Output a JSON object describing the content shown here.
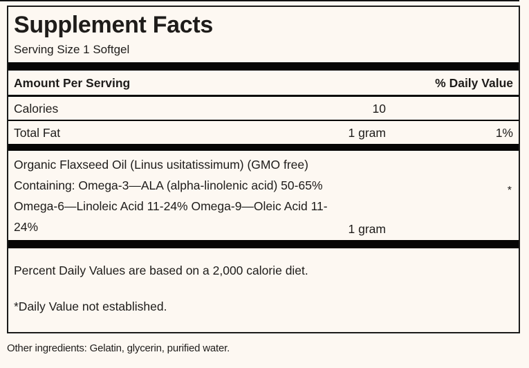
{
  "label": {
    "title": "Supplement Facts",
    "serving_size": "Serving Size 1 Softgel",
    "columns": {
      "amount_header": "Amount Per Serving",
      "dv_header": "% Daily Value"
    },
    "rows": [
      {
        "name": "Calories",
        "amount": "10",
        "dv": ""
      },
      {
        "name": "Total Fat",
        "amount": "1 gram",
        "dv": "1%"
      }
    ],
    "ingredient": {
      "lines": [
        "Organic Flaxseed Oil (Linus usitatissimum) (GMO free)",
        "Containing: Omega-3—ALA (alpha-linolenic acid) 50-65%",
        "Omega-6—Linoleic Acid 11-24% Omega-9—Oleic Acid 11-",
        "24%"
      ],
      "amount": "1 gram",
      "dv": "*"
    },
    "footnotes": [
      "Percent Daily Values are based on a 2,000 calorie diet.",
      "*Daily Value not established."
    ],
    "other_ingredients": "Other ingredients: Gelatin, glycerin, purified water."
  },
  "colors": {
    "background": "#FDF8F2",
    "text": "#1E1C1A",
    "bar": "#060606",
    "border": "#1A1A1A"
  }
}
